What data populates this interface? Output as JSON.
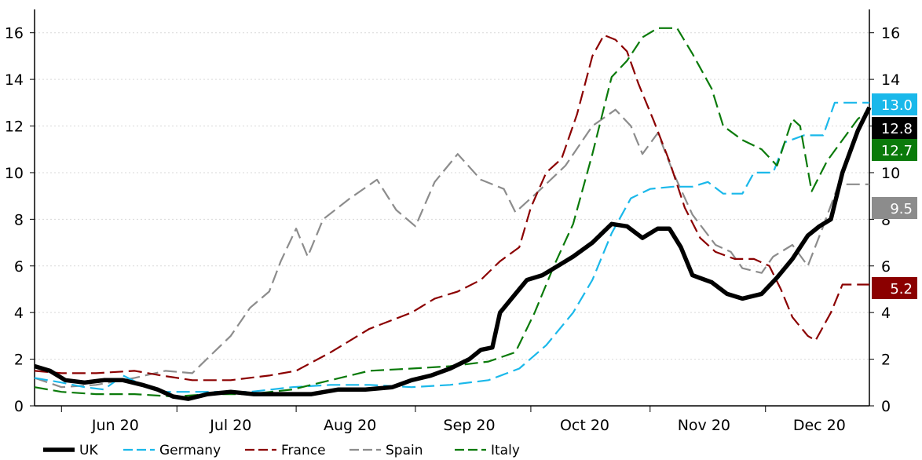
{
  "chart_data": {
    "type": "line",
    "title": "",
    "xlabel": "",
    "ylabel": "",
    "ylim": [
      0,
      17
    ],
    "yticks": [
      0,
      2,
      4,
      6,
      8,
      10,
      12,
      14,
      16
    ],
    "grid": "horizontal dotted",
    "legend_position": "bottom",
    "x_labels": [
      "Jun 20",
      "Jul 20",
      "Aug 20",
      "Sep 20",
      "Oct 20",
      "Nov 20",
      "Dec 20"
    ],
    "x_label_dates": [
      "2020-06-15",
      "2020-07-15",
      "2020-08-15",
      "2020-09-15",
      "2020-10-15",
      "2020-11-15",
      "2020-12-15"
    ],
    "x_boundaries": [
      "2020-06-01",
      "2020-07-01",
      "2020-08-01",
      "2020-09-01",
      "2020-10-01",
      "2020-11-01",
      "2020-12-01",
      "2020-12-31"
    ],
    "x_range": [
      "2020-05-25",
      "2020-12-28"
    ],
    "series": [
      {
        "name": "UK",
        "color": "#000000",
        "style": "solid",
        "end_label": "12.8",
        "points": [
          [
            "2020-05-25",
            1.7
          ],
          [
            "2020-05-29",
            1.5
          ],
          [
            "2020-06-02",
            1.1
          ],
          [
            "2020-06-07",
            1.0
          ],
          [
            "2020-06-12",
            1.1
          ],
          [
            "2020-06-17",
            1.1
          ],
          [
            "2020-06-22",
            0.9
          ],
          [
            "2020-06-26",
            0.7
          ],
          [
            "2020-06-30",
            0.4
          ],
          [
            "2020-07-04",
            0.3
          ],
          [
            "2020-07-09",
            0.5
          ],
          [
            "2020-07-15",
            0.6
          ],
          [
            "2020-07-21",
            0.5
          ],
          [
            "2020-07-28",
            0.5
          ],
          [
            "2020-08-05",
            0.5
          ],
          [
            "2020-08-12",
            0.7
          ],
          [
            "2020-08-19",
            0.7
          ],
          [
            "2020-08-26",
            0.8
          ],
          [
            "2020-08-31",
            1.1
          ],
          [
            "2020-09-05",
            1.3
          ],
          [
            "2020-09-10",
            1.6
          ],
          [
            "2020-09-15",
            2.0
          ],
          [
            "2020-09-18",
            2.4
          ],
          [
            "2020-09-21",
            2.5
          ],
          [
            "2020-09-23",
            4.0
          ],
          [
            "2020-09-27",
            4.8
          ],
          [
            "2020-09-30",
            5.4
          ],
          [
            "2020-10-04",
            5.6
          ],
          [
            "2020-10-08",
            6.0
          ],
          [
            "2020-10-12",
            6.4
          ],
          [
            "2020-10-17",
            7.0
          ],
          [
            "2020-10-22",
            7.8
          ],
          [
            "2020-10-26",
            7.7
          ],
          [
            "2020-10-30",
            7.2
          ],
          [
            "2020-11-03",
            7.6
          ],
          [
            "2020-11-06",
            7.6
          ],
          [
            "2020-11-09",
            6.8
          ],
          [
            "2020-11-12",
            5.6
          ],
          [
            "2020-11-17",
            5.3
          ],
          [
            "2020-11-21",
            4.8
          ],
          [
            "2020-11-25",
            4.6
          ],
          [
            "2020-11-30",
            4.8
          ],
          [
            "2020-12-04",
            5.5
          ],
          [
            "2020-12-08",
            6.3
          ],
          [
            "2020-12-12",
            7.3
          ],
          [
            "2020-12-15",
            7.7
          ],
          [
            "2020-12-18",
            8.0
          ],
          [
            "2020-12-21",
            10.0
          ],
          [
            "2020-12-25",
            11.8
          ],
          [
            "2020-12-28",
            12.8
          ]
        ]
      },
      {
        "name": "Germany",
        "color": "#1ab8ea",
        "style": "dashed",
        "end_label": "13.0",
        "points": [
          [
            "2020-05-25",
            1.2
          ],
          [
            "2020-06-01",
            1.0
          ],
          [
            "2020-06-07",
            0.8
          ],
          [
            "2020-06-12",
            0.7
          ],
          [
            "2020-06-17",
            1.3
          ],
          [
            "2020-06-22",
            0.9
          ],
          [
            "2020-06-27",
            0.6
          ],
          [
            "2020-07-03",
            0.6
          ],
          [
            "2020-07-10",
            0.6
          ],
          [
            "2020-07-20",
            0.6
          ],
          [
            "2020-07-31",
            0.8
          ],
          [
            "2020-08-10",
            0.9
          ],
          [
            "2020-08-20",
            0.9
          ],
          [
            "2020-08-31",
            0.8
          ],
          [
            "2020-09-10",
            0.9
          ],
          [
            "2020-09-20",
            1.1
          ],
          [
            "2020-09-28",
            1.6
          ],
          [
            "2020-10-05",
            2.6
          ],
          [
            "2020-10-12",
            4.0
          ],
          [
            "2020-10-17",
            5.4
          ],
          [
            "2020-10-22",
            7.4
          ],
          [
            "2020-10-27",
            8.9
          ],
          [
            "2020-11-01",
            9.3
          ],
          [
            "2020-11-07",
            9.4
          ],
          [
            "2020-11-12",
            9.4
          ],
          [
            "2020-11-16",
            9.6
          ],
          [
            "2020-11-20",
            9.1
          ],
          [
            "2020-11-25",
            9.1
          ],
          [
            "2020-11-28",
            10.0
          ],
          [
            "2020-12-03",
            10.0
          ],
          [
            "2020-12-06",
            11.3
          ],
          [
            "2020-12-11",
            11.6
          ],
          [
            "2020-12-16",
            11.6
          ],
          [
            "2020-12-19",
            13.0
          ],
          [
            "2020-12-28",
            13.0
          ]
        ]
      },
      {
        "name": "France",
        "color": "#8b0000",
        "style": "dashed",
        "end_label": "5.2",
        "points": [
          [
            "2020-05-25",
            1.5
          ],
          [
            "2020-06-01",
            1.4
          ],
          [
            "2020-06-10",
            1.4
          ],
          [
            "2020-06-20",
            1.5
          ],
          [
            "2020-06-27",
            1.3
          ],
          [
            "2020-07-05",
            1.1
          ],
          [
            "2020-07-15",
            1.1
          ],
          [
            "2020-07-25",
            1.3
          ],
          [
            "2020-08-01",
            1.5
          ],
          [
            "2020-08-10",
            2.3
          ],
          [
            "2020-08-20",
            3.3
          ],
          [
            "2020-08-31",
            4.0
          ],
          [
            "2020-09-06",
            4.6
          ],
          [
            "2020-09-12",
            4.9
          ],
          [
            "2020-09-18",
            5.4
          ],
          [
            "2020-09-23",
            6.2
          ],
          [
            "2020-09-28",
            6.8
          ],
          [
            "2020-10-01",
            8.5
          ],
          [
            "2020-10-05",
            10.0
          ],
          [
            "2020-10-09",
            10.6
          ],
          [
            "2020-10-13",
            12.5
          ],
          [
            "2020-10-17",
            15.0
          ],
          [
            "2020-10-20",
            15.9
          ],
          [
            "2020-10-23",
            15.7
          ],
          [
            "2020-10-26",
            15.2
          ],
          [
            "2020-10-29",
            13.8
          ],
          [
            "2020-11-02",
            12.2
          ],
          [
            "2020-11-06",
            10.5
          ],
          [
            "2020-11-10",
            8.5
          ],
          [
            "2020-11-14",
            7.2
          ],
          [
            "2020-11-18",
            6.6
          ],
          [
            "2020-11-23",
            6.3
          ],
          [
            "2020-11-28",
            6.3
          ],
          [
            "2020-12-02",
            6.0
          ],
          [
            "2020-12-05",
            5.0
          ],
          [
            "2020-12-08",
            3.8
          ],
          [
            "2020-12-12",
            3.0
          ],
          [
            "2020-12-14",
            2.8
          ],
          [
            "2020-12-18",
            4.0
          ],
          [
            "2020-12-21",
            5.2
          ],
          [
            "2020-12-28",
            5.2
          ]
        ]
      },
      {
        "name": "Spain",
        "color": "#8c8c8c",
        "style": "dashed",
        "end_label": "9.5",
        "points": [
          [
            "2020-05-25",
            1.2
          ],
          [
            "2020-06-01",
            0.8
          ],
          [
            "2020-06-10",
            0.9
          ],
          [
            "2020-06-20",
            1.2
          ],
          [
            "2020-06-28",
            1.5
          ],
          [
            "2020-07-05",
            1.4
          ],
          [
            "2020-07-10",
            2.2
          ],
          [
            "2020-07-15",
            3.0
          ],
          [
            "2020-07-20",
            4.2
          ],
          [
            "2020-07-25",
            4.9
          ],
          [
            "2020-07-28",
            6.2
          ],
          [
            "2020-08-01",
            7.6
          ],
          [
            "2020-08-04",
            6.4
          ],
          [
            "2020-08-08",
            8.0
          ],
          [
            "2020-08-15",
            8.9
          ],
          [
            "2020-08-22",
            9.7
          ],
          [
            "2020-08-27",
            8.4
          ],
          [
            "2020-09-01",
            7.7
          ],
          [
            "2020-09-06",
            9.6
          ],
          [
            "2020-09-12",
            10.8
          ],
          [
            "2020-09-18",
            9.7
          ],
          [
            "2020-09-24",
            9.3
          ],
          [
            "2020-09-27",
            8.3
          ],
          [
            "2020-10-03",
            9.2
          ],
          [
            "2020-10-10",
            10.3
          ],
          [
            "2020-10-17",
            12.0
          ],
          [
            "2020-10-23",
            12.7
          ],
          [
            "2020-10-27",
            12.0
          ],
          [
            "2020-10-30",
            10.8
          ],
          [
            "2020-11-03",
            11.7
          ],
          [
            "2020-11-07",
            10.0
          ],
          [
            "2020-11-12",
            8.2
          ],
          [
            "2020-11-18",
            6.9
          ],
          [
            "2020-11-22",
            6.6
          ],
          [
            "2020-11-25",
            5.9
          ],
          [
            "2020-11-30",
            5.7
          ],
          [
            "2020-12-03",
            6.4
          ],
          [
            "2020-12-08",
            6.9
          ],
          [
            "2020-12-12",
            6.0
          ],
          [
            "2020-12-16",
            7.7
          ],
          [
            "2020-12-20",
            9.5
          ],
          [
            "2020-12-28",
            9.5
          ]
        ]
      },
      {
        "name": "Italy",
        "color": "#0a7a0a",
        "style": "dashed",
        "end_label": "12.7",
        "points": [
          [
            "2020-05-25",
            0.8
          ],
          [
            "2020-06-01",
            0.6
          ],
          [
            "2020-06-10",
            0.5
          ],
          [
            "2020-06-20",
            0.5
          ],
          [
            "2020-06-30",
            0.4
          ],
          [
            "2020-07-10",
            0.5
          ],
          [
            "2020-07-20",
            0.5
          ],
          [
            "2020-07-31",
            0.7
          ],
          [
            "2020-08-10",
            1.1
          ],
          [
            "2020-08-20",
            1.5
          ],
          [
            "2020-08-31",
            1.6
          ],
          [
            "2020-09-10",
            1.7
          ],
          [
            "2020-09-20",
            1.9
          ],
          [
            "2020-09-27",
            2.3
          ],
          [
            "2020-10-02",
            4.0
          ],
          [
            "2020-10-07",
            6.0
          ],
          [
            "2020-10-12",
            7.8
          ],
          [
            "2020-10-17",
            10.8
          ],
          [
            "2020-10-22",
            14.1
          ],
          [
            "2020-10-26",
            14.8
          ],
          [
            "2020-10-30",
            15.8
          ],
          [
            "2020-11-03",
            16.2
          ],
          [
            "2020-11-08",
            16.2
          ],
          [
            "2020-11-12",
            15.1
          ],
          [
            "2020-11-17",
            13.6
          ],
          [
            "2020-11-20",
            12.0
          ],
          [
            "2020-11-25",
            11.4
          ],
          [
            "2020-11-30",
            11.0
          ],
          [
            "2020-12-04",
            10.3
          ],
          [
            "2020-12-08",
            12.3
          ],
          [
            "2020-12-10",
            12.0
          ],
          [
            "2020-12-13",
            9.2
          ],
          [
            "2020-12-17",
            10.5
          ],
          [
            "2020-12-21",
            11.4
          ],
          [
            "2020-12-25",
            12.3
          ],
          [
            "2020-12-28",
            12.7
          ]
        ]
      }
    ]
  }
}
